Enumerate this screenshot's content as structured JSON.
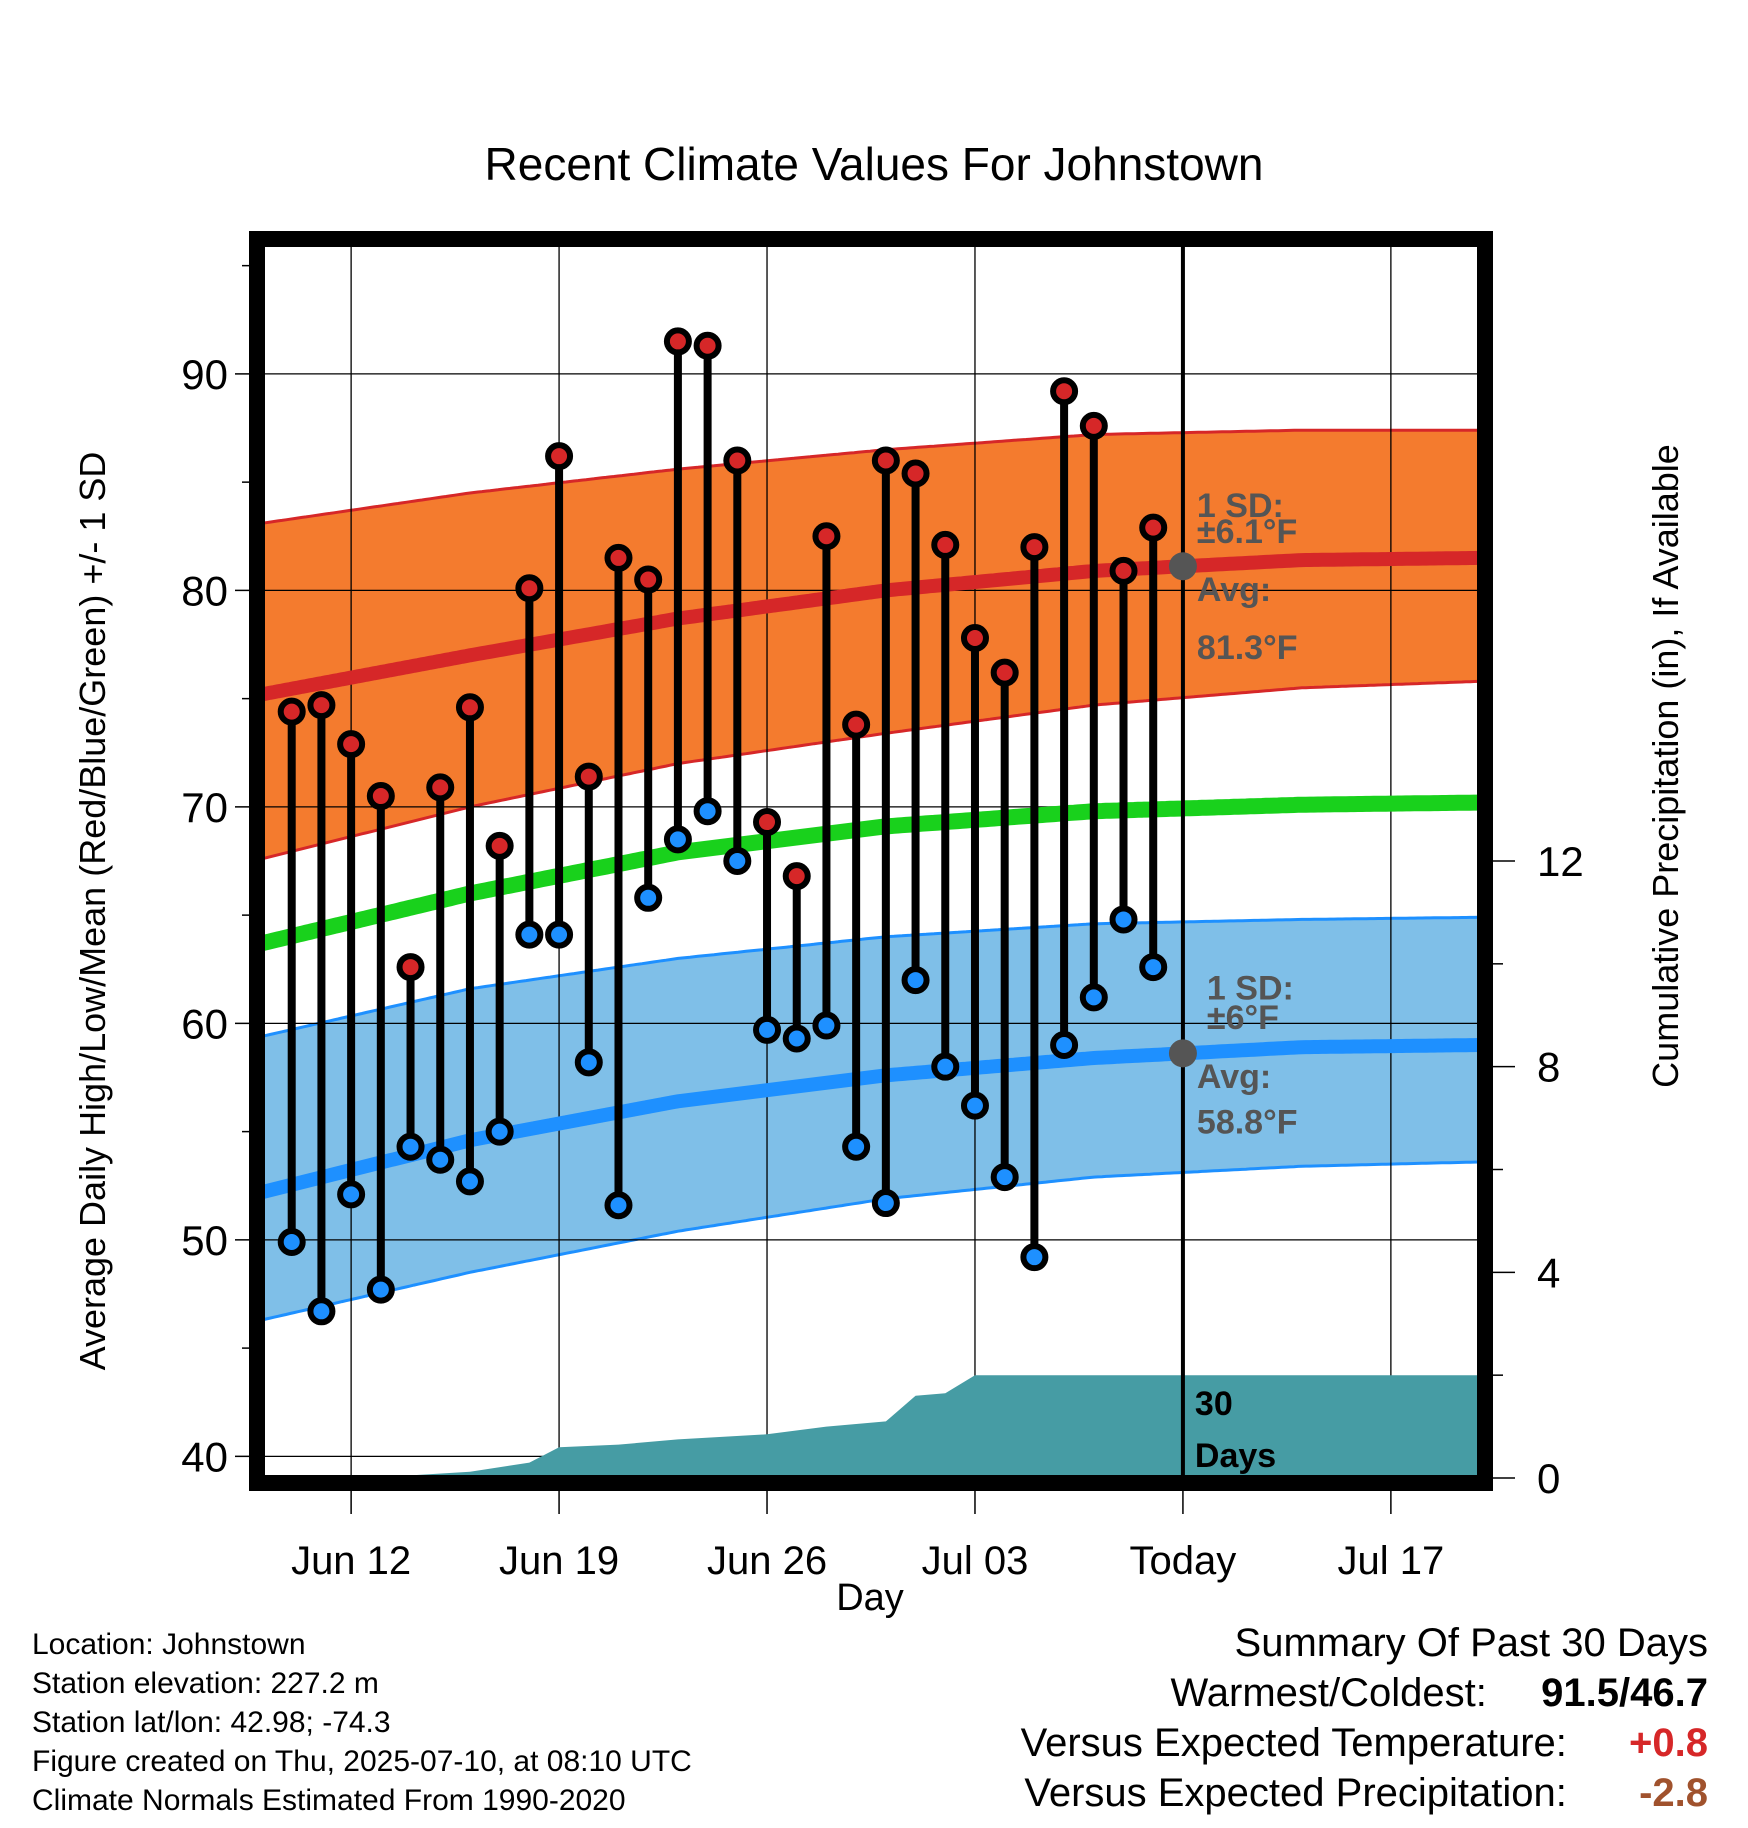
{
  "chart_data": {
    "type": "line",
    "title": "Recent Climate Values For Johnstown",
    "xlabel": "Day",
    "ylabel": "Average Daily High/Low/Mean (Red/Blue/Green) +/- 1 SD",
    "ylabel_right": "Cumulative Precipitation (in), If Available",
    "ylim": [
      39,
      96
    ],
    "ylim_right": [
      0,
      24
    ],
    "yticks": [
      "40",
      "50",
      "60",
      "70",
      "80",
      "90"
    ],
    "yticks_right": [
      "0",
      "4",
      "8",
      "12"
    ],
    "xlim": [
      "2025-06-09",
      "2025-07-20"
    ],
    "xticks": [
      "Jun 12",
      "Jun 19",
      "Jun 26",
      "Jul 03",
      "Today",
      "Jul 17"
    ],
    "xtick_dates": [
      "2025-06-12",
      "2025-06-19",
      "2025-06-26",
      "2025-07-03",
      "2025-07-10",
      "2025-07-17"
    ],
    "grid": true,
    "today": "2025-07-10",
    "colors": {
      "high_band": "#f47b2e",
      "high_line": "#d62728",
      "low_band": "#7fbfe8",
      "low_line": "#1e90ff",
      "mean_line": "#19d11c",
      "precip": "#469ca4",
      "high_dot": "#d62728",
      "low_dot": "#1e90ff",
      "warm_text": "#d62728",
      "dry_text": "#a0522d",
      "annotation": "#555555"
    },
    "normals": {
      "dates": [
        "2025-06-09",
        "2025-06-16",
        "2025-06-23",
        "2025-06-30",
        "2025-07-07",
        "2025-07-14",
        "2025-07-20"
      ],
      "high_avg": [
        75.2,
        77.0,
        78.7,
        80.0,
        80.9,
        81.4,
        81.5
      ],
      "high_sd_upper": [
        83.1,
        84.5,
        85.6,
        86.5,
        87.2,
        87.4,
        87.4
      ],
      "high_sd_lower": [
        67.6,
        70.0,
        72.0,
        73.4,
        74.7,
        75.5,
        75.8
      ],
      "low_avg": [
        52.2,
        54.6,
        56.4,
        57.6,
        58.4,
        58.9,
        59.0
      ],
      "low_sd_upper": [
        59.4,
        61.6,
        63.0,
        64.0,
        64.6,
        64.8,
        64.9
      ],
      "low_sd_lower": [
        46.3,
        48.5,
        50.4,
        51.9,
        52.9,
        53.4,
        53.6
      ],
      "mean_avg": [
        63.7,
        66.0,
        67.9,
        69.1,
        69.8,
        70.1,
        70.2
      ]
    },
    "daily": {
      "dates": [
        "2025-06-10",
        "2025-06-11",
        "2025-06-12",
        "2025-06-13",
        "2025-06-14",
        "2025-06-15",
        "2025-06-16",
        "2025-06-17",
        "2025-06-18",
        "2025-06-19",
        "2025-06-20",
        "2025-06-21",
        "2025-06-22",
        "2025-06-23",
        "2025-06-24",
        "2025-06-25",
        "2025-06-26",
        "2025-06-27",
        "2025-06-28",
        "2025-06-29",
        "2025-06-30",
        "2025-07-01",
        "2025-07-02",
        "2025-07-03",
        "2025-07-04",
        "2025-07-05",
        "2025-07-06",
        "2025-07-07",
        "2025-07-08",
        "2025-07-09"
      ],
      "high": [
        74.4,
        74.7,
        72.9,
        70.5,
        62.6,
        70.9,
        74.6,
        68.2,
        80.1,
        86.2,
        71.4,
        81.5,
        80.5,
        91.5,
        91.3,
        86.0,
        69.3,
        66.8,
        82.5,
        73.8,
        86.0,
        85.4,
        82.1,
        77.8,
        76.2,
        82.0,
        89.2,
        87.6,
        80.9,
        82.9
      ],
      "low": [
        49.9,
        46.7,
        52.1,
        47.7,
        54.3,
        53.7,
        52.7,
        55.0,
        64.1,
        64.1,
        58.2,
        51.6,
        65.8,
        68.5,
        69.8,
        67.5,
        59.7,
        59.3,
        59.9,
        54.3,
        51.7,
        62.0,
        58.0,
        56.2,
        52.9,
        49.2,
        59.0,
        61.2,
        64.8,
        62.6
      ]
    },
    "precip": {
      "dates": [
        "2025-06-09",
        "2025-06-12",
        "2025-06-14",
        "2025-06-16",
        "2025-06-18",
        "2025-06-19",
        "2025-06-21",
        "2025-06-23",
        "2025-06-26",
        "2025-06-28",
        "2025-06-30",
        "2025-07-01",
        "2025-07-02",
        "2025-07-03",
        "2025-07-10",
        "2025-07-20"
      ],
      "cumulative": [
        0.0,
        0.0,
        0.05,
        0.12,
        0.3,
        0.6,
        0.65,
        0.75,
        0.85,
        1.0,
        1.1,
        1.6,
        1.65,
        2.0,
        2.0,
        2.0
      ]
    },
    "annotations": {
      "high_sd_title": "1 SD:",
      "high_sd_value": "±6.1°F",
      "high_avg_title": "Avg:",
      "high_avg_value": "81.3°F",
      "low_sd_title": "1 SD:",
      "low_sd_value": "±6°F",
      "low_avg_title": "Avg:",
      "low_avg_value": "58.8°F",
      "precip_label_1": "30",
      "precip_label_2": "Days"
    }
  },
  "info": {
    "location": "Location: Johnstown",
    "elevation": "Station elevation: 227.2 m",
    "latlon": "Station lat/lon: 42.98; -74.3",
    "created": "Figure created on Thu, 2025-07-10, at 08:10 UTC",
    "normals": "Climate Normals Estimated From 1990-2020"
  },
  "summary": {
    "title": "Summary Of Past 30 Days",
    "warmest_label": "Warmest/Coldest:",
    "warmest_value": "91.5/46.7",
    "temp_label": "Versus Expected Temperature:",
    "temp_value": "+0.8",
    "precip_label": "Versus Expected Precipitation:",
    "precip_value": "-2.8"
  }
}
